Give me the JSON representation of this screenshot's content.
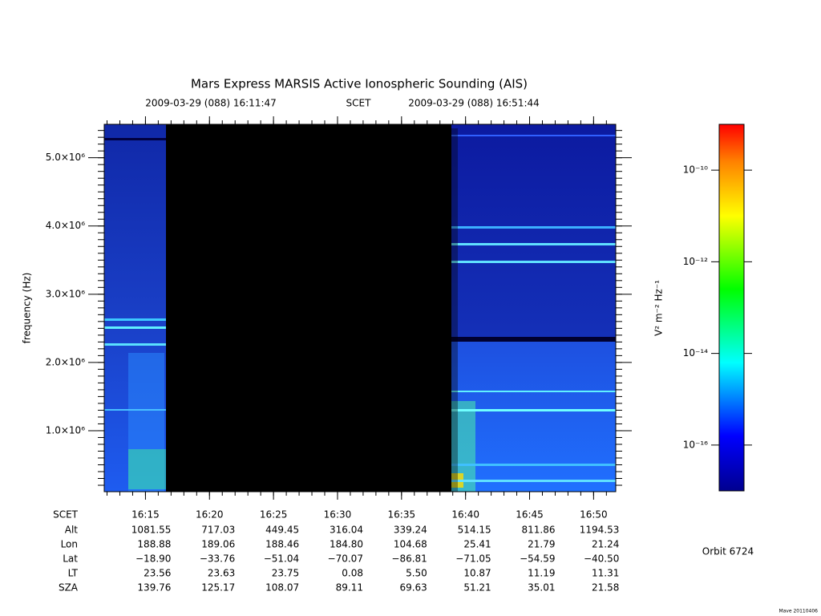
{
  "chart_data": {
    "type": "spectrogram",
    "title": "Mars Express MARSIS Active Ionospheric Sounding (AIS)",
    "start_time": "2009-03-29 (088) 16:11:47",
    "time_system": "SCET",
    "end_time": "2009-03-29 (088) 16:51:44",
    "y_label": "frequency (Hz)",
    "xlim": [
      971.78,
      1011.73
    ],
    "xticks": [
      {
        "value": 975,
        "label": "16:15"
      },
      {
        "value": 980,
        "label": "16:20"
      },
      {
        "value": 985,
        "label": "16:25"
      },
      {
        "value": 990,
        "label": "16:30"
      },
      {
        "value": 995,
        "label": "16:35"
      },
      {
        "value": 1000,
        "label": "16:40"
      },
      {
        "value": 1005,
        "label": "16:45"
      },
      {
        "value": 1010,
        "label": "16:50"
      }
    ],
    "ylim": [
      106000,
      5490000
    ],
    "yticks": [
      {
        "value": 1000000,
        "label": "1.0×10⁶"
      },
      {
        "value": 2000000,
        "label": "2.0×10⁶"
      },
      {
        "value": 3000000,
        "label": "3.0×10⁶"
      },
      {
        "value": 4000000,
        "label": "4.0×10⁶"
      },
      {
        "value": 5000000,
        "label": "5.0×10⁶"
      }
    ],
    "colorbar": {
      "label": "V² m⁻² Hz⁻¹",
      "log_scale": true,
      "lim": [
        1e-17,
        1e-09
      ],
      "ticks": [
        {
          "value": 1e-16,
          "label": "10⁻¹⁶"
        },
        {
          "value": 1e-14,
          "label": "10⁻¹⁴"
        },
        {
          "value": 1e-12,
          "label": "10⁻¹²"
        },
        {
          "value": 1e-10,
          "label": "10⁻¹⁰"
        }
      ]
    },
    "ephemeris": {
      "time_label": "SCET",
      "rows": [
        {
          "label": "Alt",
          "values": [
            "1081.55",
            "717.03",
            "449.45",
            "316.04",
            "339.24",
            "514.15",
            "811.86",
            "1194.53"
          ]
        },
        {
          "label": "Lon",
          "values": [
            "188.88",
            "189.06",
            "188.46",
            "184.80",
            "104.68",
            "25.41",
            "21.79",
            "21.24"
          ]
        },
        {
          "label": "Lat",
          "values": [
            "−18.90",
            "−33.76",
            "−51.04",
            "−70.07",
            "−86.81",
            "−71.05",
            "−54.59",
            "−40.50"
          ]
        },
        {
          "label": "LT",
          "values": [
            "23.56",
            "23.63",
            "23.75",
            "0.08",
            "5.50",
            "10.87",
            "11.19",
            "11.31"
          ]
        },
        {
          "label": "SZA",
          "values": [
            "139.76",
            "125.17",
            "108.07",
            "89.11",
            "69.63",
            "51.21",
            "35.01",
            "21.58"
          ]
        }
      ]
    },
    "orbit": "Orbit 6724",
    "credit": "Mave 20110406"
  }
}
